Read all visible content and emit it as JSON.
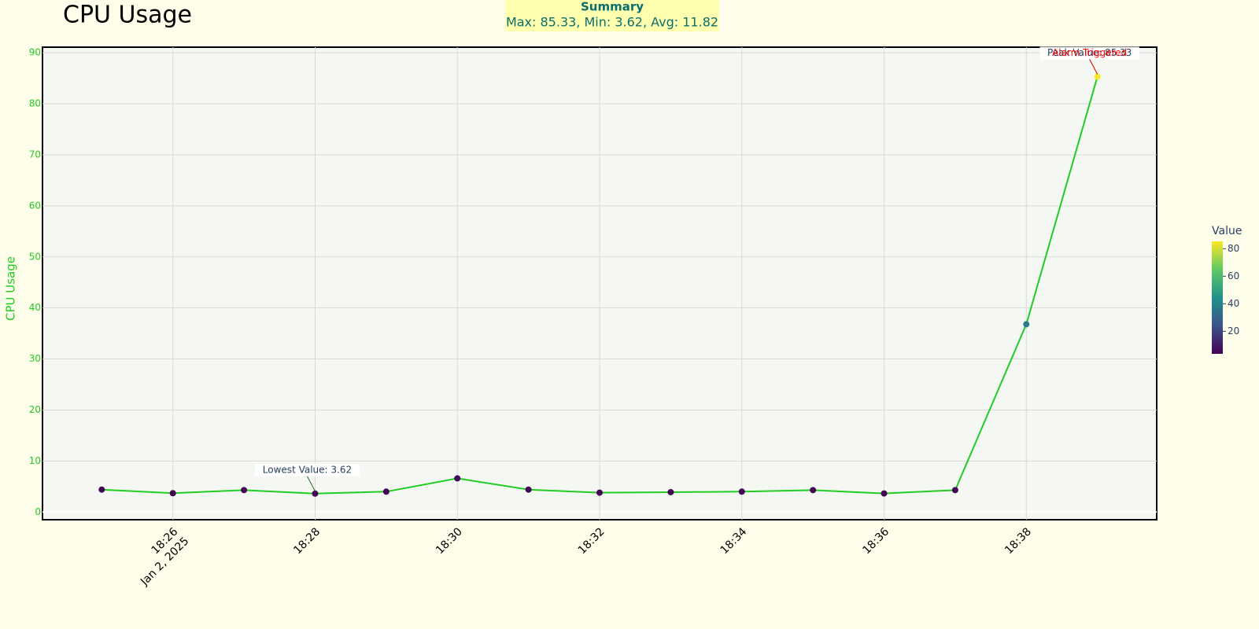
{
  "chart_data": {
    "type": "line",
    "title": "CPU Usage",
    "summary": {
      "title": "Summary",
      "text": "Max: 85.33, Min: 3.62, Avg: 11.82"
    },
    "y_label": "CPU Usage",
    "x": [
      "2025-01-02 18:25",
      "2025-01-02 18:26",
      "2025-01-02 18:27",
      "2025-01-02 18:28",
      "2025-01-02 18:29",
      "2025-01-02 18:30",
      "2025-01-02 18:31",
      "2025-01-02 18:32",
      "2025-01-02 18:33",
      "2025-01-02 18:34",
      "2025-01-02 18:35",
      "2025-01-02 18:36",
      "2025-01-02 18:37",
      "2025-01-02 18:38",
      "2025-01-02 18:39"
    ],
    "series": [
      {
        "name": "CPU Usage",
        "color": "#22cc22",
        "colorscale": "viridis",
        "values": [
          4.4,
          3.7,
          4.3,
          3.62,
          4.0,
          6.6,
          4.4,
          3.8,
          3.9,
          4.0,
          4.3,
          3.65,
          4.3,
          36.8,
          85.33
        ]
      }
    ],
    "xlim": [
      "2025-01-02 18:24:10",
      "2025-01-02 18:39:50"
    ],
    "xticks": [
      {
        "value": "2025-01-02 18:26",
        "label": "18:26"
      },
      {
        "value": "2025-01-02 18:28",
        "label": "18:28"
      },
      {
        "value": "2025-01-02 18:30",
        "label": "18:30"
      },
      {
        "value": "2025-01-02 18:32",
        "label": "18:32"
      },
      {
        "value": "2025-01-02 18:34",
        "label": "18:34"
      },
      {
        "value": "2025-01-02 18:36",
        "label": "18:36"
      },
      {
        "value": "2025-01-02 18:38",
        "label": "18:38"
      }
    ],
    "x_date_label": "Jan 2, 2025",
    "ylim": [
      -1.5,
      91.1
    ],
    "yticks": [
      0,
      10,
      20,
      30,
      40,
      50,
      60,
      70,
      80,
      90
    ],
    "grid": true,
    "colorbar": {
      "title": "Value",
      "lim": [
        3.62,
        85.33
      ],
      "ticks": [
        20,
        40,
        60,
        80
      ]
    },
    "annotations": [
      {
        "text": "Lowest Value: 3.62",
        "point": 3,
        "color": "#2a3f5f"
      },
      {
        "text": "Peak Value: 85.33",
        "point": 14,
        "color": "#2a3f5f"
      },
      {
        "text": "Alarm Triggered",
        "point": 14,
        "color": "#ff0000"
      }
    ]
  }
}
